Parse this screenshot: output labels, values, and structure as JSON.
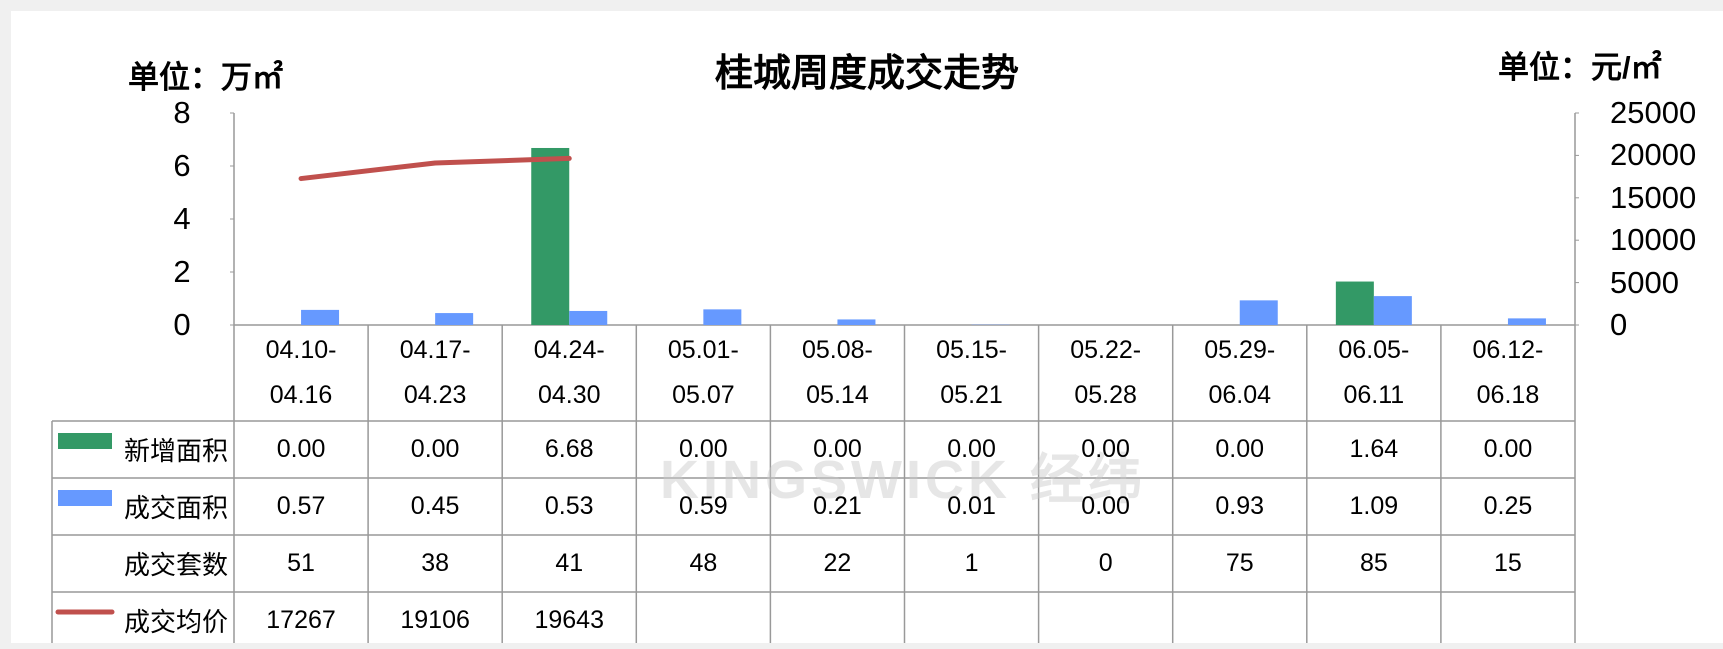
{
  "chart_data": {
    "type": "bar",
    "title": "桂城周度成交走势",
    "y_unit": "单位：万㎡",
    "y2_unit": "单位：元/㎡",
    "watermark": "KINGSWICK 经纬",
    "categories": [
      "04.10-04.16",
      "04.17-04.23",
      "04.24-04.30",
      "05.01-05.07",
      "05.08-05.14",
      "05.15-05.21",
      "05.22-05.28",
      "05.29-06.04",
      "06.05-06.11",
      "06.12-06.18"
    ],
    "ylim": [
      0,
      8
    ],
    "yticks": [
      0,
      2,
      4,
      6,
      8
    ],
    "y2lim": [
      0,
      25000
    ],
    "y2ticks": [
      0,
      5000,
      10000,
      15000,
      20000,
      25000
    ],
    "series": [
      {
        "name": "新增面积",
        "type": "bar",
        "color": "#339966",
        "values": [
          0,
          0,
          6.68,
          0,
          0,
          0,
          0,
          0,
          1.64,
          0
        ],
        "value_labels": [
          "0.00",
          "0.00",
          "6.68",
          "0.00",
          "0.00",
          "0.00",
          "0.00",
          "0.00",
          "1.64",
          "0.00"
        ]
      },
      {
        "name": "成交面积",
        "type": "bar",
        "color": "#6699ff",
        "values": [
          0.57,
          0.45,
          0.53,
          0.59,
          0.21,
          0.01,
          0,
          0.93,
          1.09,
          0.25
        ],
        "value_labels": [
          "0.57",
          "0.45",
          "0.53",
          "0.59",
          "0.21",
          "0.01",
          "0.00",
          "0.93",
          "1.09",
          "0.25"
        ]
      },
      {
        "name": "成交套数",
        "type": "table",
        "values": [
          51,
          38,
          41,
          48,
          22,
          1,
          0,
          75,
          85,
          15
        ]
      },
      {
        "name": "成交均价",
        "type": "line",
        "axis": "y2",
        "color": "#c0504d",
        "values": [
          17267,
          19106,
          19643,
          null,
          null,
          null,
          null,
          null,
          null,
          null
        ]
      }
    ]
  }
}
